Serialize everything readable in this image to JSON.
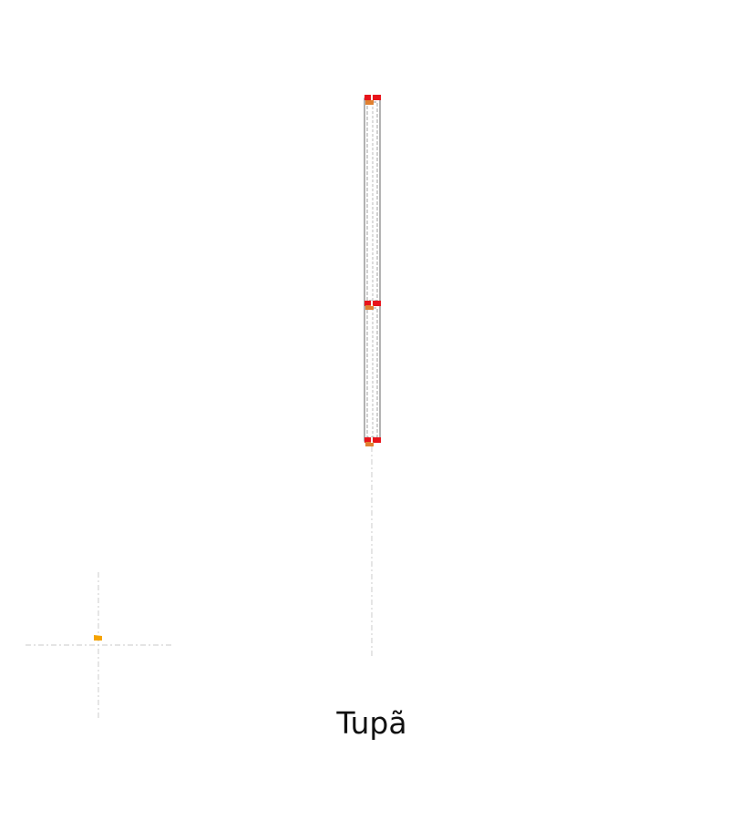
{
  "caption": "Tupã",
  "colors": {
    "background": "#ffffff",
    "guide_line": "#d4d4d4",
    "stack_outline": "#888888",
    "marker_red": "#e8141b",
    "marker_orange": "#e08030",
    "origin_marker": "#f5a300",
    "caption_text": "#111111"
  },
  "diagram": {
    "segments": 2,
    "markers": [
      "top",
      "middle",
      "bottom"
    ]
  }
}
